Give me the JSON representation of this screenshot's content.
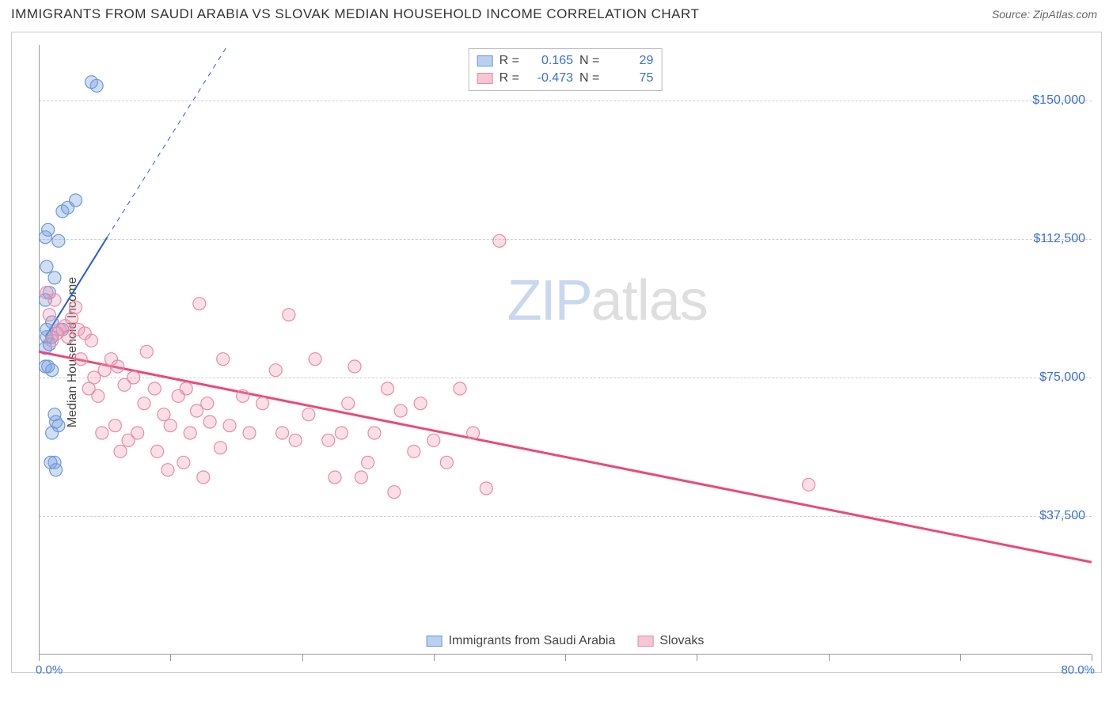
{
  "title": "IMMIGRANTS FROM SAUDI ARABIA VS SLOVAK MEDIAN HOUSEHOLD INCOME CORRELATION CHART",
  "source_label": "Source: ZipAtlas.com",
  "y_axis_label": "Median Household Income",
  "watermark": {
    "part1": "ZIP",
    "part2": "atlas"
  },
  "chart": {
    "type": "scatter",
    "background_color": "#ffffff",
    "border_color": "#cccccc",
    "grid_color": "#d0d0d0",
    "axis_color": "#999999",
    "label_color": "#3b6fd6",
    "x": {
      "min": 0,
      "max": 80,
      "min_label": "0.0%",
      "max_label": "80.0%",
      "tick_positions_pct": [
        0,
        12.5,
        25,
        37.5,
        50,
        62.5,
        75,
        87.5,
        100
      ]
    },
    "y": {
      "min": 0,
      "max": 165000,
      "ticks": [
        37500,
        75000,
        112500,
        150000
      ],
      "tick_labels": [
        "$37,500",
        "$75,000",
        "$112,500",
        "$150,000"
      ]
    },
    "legend_top": [
      {
        "swatch_fill": "#b9d0ef",
        "swatch_border": "#6a98dd",
        "r_label": "R =",
        "r": "0.165",
        "n_label": "N =",
        "n": "29"
      },
      {
        "swatch_fill": "#f6c7d2",
        "swatch_border": "#e98aa4",
        "r_label": "R =",
        "r": "-0.473",
        "n_label": "N =",
        "n": "75"
      }
    ],
    "legend_bottom": [
      {
        "swatch_fill": "#b9d0ef",
        "swatch_border": "#6a98dd",
        "label": "Immigrants from Saudi Arabia"
      },
      {
        "swatch_fill": "#f6c7d2",
        "swatch_border": "#e98aa4",
        "label": "Slovaks"
      }
    ],
    "series": [
      {
        "name": "Immigrants from Saudi Arabia",
        "marker_fill": "rgba(120,160,220,0.35)",
        "marker_stroke": "#6a98dd",
        "marker_radius": 8,
        "trend": {
          "color": "#2a5fc9",
          "width": 2,
          "x1": 0.5,
          "y1": 86000,
          "x2_solid": 5.2,
          "y2_solid": 113000,
          "x2_dash": 17,
          "y2_dash": 180000
        },
        "points": [
          [
            0.6,
            86000
          ],
          [
            0.6,
            88000
          ],
          [
            0.8,
            84000
          ],
          [
            1.0,
            90000
          ],
          [
            0.5,
            83000
          ],
          [
            1.2,
            102000
          ],
          [
            1.5,
            112000
          ],
          [
            1.8,
            120000
          ],
          [
            2.2,
            121000
          ],
          [
            2.8,
            123000
          ],
          [
            0.8,
            98000
          ],
          [
            0.5,
            96000
          ],
          [
            0.7,
            78000
          ],
          [
            1.0,
            77000
          ],
          [
            1.2,
            65000
          ],
          [
            1.3,
            63000
          ],
          [
            1.5,
            62000
          ],
          [
            1.0,
            60000
          ],
          [
            1.2,
            52000
          ],
          [
            0.9,
            52000
          ],
          [
            1.3,
            50000
          ],
          [
            4.0,
            155000
          ],
          [
            4.4,
            154000
          ],
          [
            0.6,
            105000
          ],
          [
            0.5,
            113000
          ],
          [
            0.7,
            115000
          ],
          [
            1.8,
            88000
          ],
          [
            0.5,
            78000
          ],
          [
            1.0,
            86000
          ]
        ]
      },
      {
        "name": "Slovaks",
        "marker_fill": "rgba(240,150,175,0.30)",
        "marker_stroke": "#e98aa4",
        "marker_radius": 8,
        "trend": {
          "color": "#e94b77",
          "width": 3,
          "x1": 0,
          "y1": 82000,
          "x2_solid": 80,
          "y2_solid": 25000
        },
        "points": [
          [
            0.6,
            98000
          ],
          [
            1.2,
            96000
          ],
          [
            2.0,
            89000
          ],
          [
            2.5,
            91000
          ],
          [
            3.0,
            88000
          ],
          [
            3.5,
            87000
          ],
          [
            4.0,
            85000
          ],
          [
            2.8,
            94000
          ],
          [
            0.8,
            92000
          ],
          [
            1.6,
            88000
          ],
          [
            2.2,
            86000
          ],
          [
            3.2,
            80000
          ],
          [
            5.5,
            80000
          ],
          [
            4.2,
            75000
          ],
          [
            5.0,
            77000
          ],
          [
            6.0,
            78000
          ],
          [
            3.8,
            72000
          ],
          [
            4.5,
            70000
          ],
          [
            6.5,
            73000
          ],
          [
            7.2,
            75000
          ],
          [
            8.0,
            68000
          ],
          [
            8.8,
            72000
          ],
          [
            9.5,
            65000
          ],
          [
            10.6,
            70000
          ],
          [
            11.2,
            72000
          ],
          [
            12.0,
            66000
          ],
          [
            12.8,
            68000
          ],
          [
            10.0,
            62000
          ],
          [
            11.5,
            60000
          ],
          [
            13.0,
            63000
          ],
          [
            14.5,
            62000
          ],
          [
            15.5,
            70000
          ],
          [
            16.0,
            60000
          ],
          [
            17.0,
            68000
          ],
          [
            18.0,
            77000
          ],
          [
            18.5,
            60000
          ],
          [
            19.5,
            58000
          ],
          [
            20.5,
            65000
          ],
          [
            21.0,
            80000
          ],
          [
            22.0,
            58000
          ],
          [
            23.0,
            60000
          ],
          [
            23.5,
            68000
          ],
          [
            24.5,
            48000
          ],
          [
            25.5,
            60000
          ],
          [
            26.5,
            72000
          ],
          [
            27.5,
            66000
          ],
          [
            28.5,
            55000
          ],
          [
            29.0,
            68000
          ],
          [
            30.0,
            58000
          ],
          [
            31.0,
            52000
          ],
          [
            32.0,
            72000
          ],
          [
            34.0,
            45000
          ],
          [
            35.0,
            112000
          ],
          [
            24.0,
            78000
          ],
          [
            19.0,
            92000
          ],
          [
            14.0,
            80000
          ],
          [
            8.2,
            82000
          ],
          [
            6.2,
            55000
          ],
          [
            6.8,
            58000
          ],
          [
            7.5,
            60000
          ],
          [
            9.0,
            55000
          ],
          [
            9.8,
            50000
          ],
          [
            11.0,
            52000
          ],
          [
            12.5,
            48000
          ],
          [
            13.8,
            56000
          ],
          [
            5.8,
            62000
          ],
          [
            4.8,
            60000
          ],
          [
            12.2,
            95000
          ],
          [
            22.5,
            48000
          ],
          [
            25.0,
            52000
          ],
          [
            27.0,
            44000
          ],
          [
            33.0,
            60000
          ],
          [
            58.5,
            46000
          ],
          [
            1.0,
            85000
          ],
          [
            1.4,
            87000
          ]
        ]
      }
    ]
  }
}
